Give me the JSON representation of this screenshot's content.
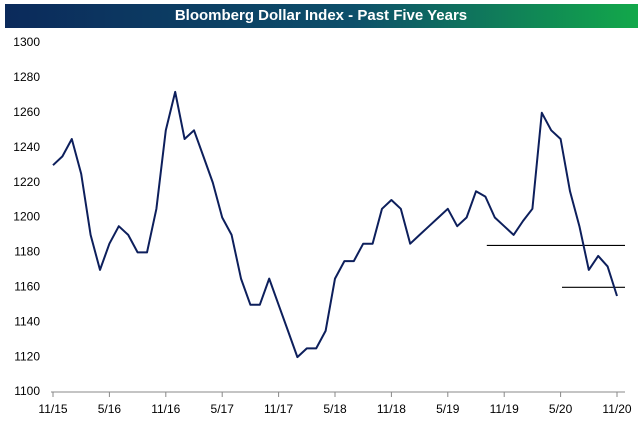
{
  "chart_data": {
    "type": "line",
    "title": "Bloomberg Dollar Index - Past Five Years",
    "x": [
      "11/15",
      "12/15",
      "1/16",
      "2/16",
      "3/16",
      "4/16",
      "5/16",
      "6/16",
      "7/16",
      "8/16",
      "9/16",
      "10/16",
      "11/16",
      "12/16",
      "1/17",
      "2/17",
      "3/17",
      "4/17",
      "5/17",
      "6/17",
      "7/17",
      "8/17",
      "9/17",
      "10/17",
      "11/17",
      "12/17",
      "1/18",
      "2/18",
      "3/18",
      "4/18",
      "5/18",
      "6/18",
      "7/18",
      "8/18",
      "9/18",
      "10/18",
      "11/18",
      "12/18",
      "1/19",
      "2/19",
      "3/19",
      "4/19",
      "5/19",
      "6/19",
      "7/19",
      "8/19",
      "9/19",
      "10/19",
      "11/19",
      "12/19",
      "1/20",
      "2/20",
      "3/20",
      "4/20",
      "5/20",
      "6/20",
      "7/20",
      "8/20",
      "9/20",
      "10/20",
      "11/20"
    ],
    "series": [
      {
        "name": "Bloomberg Dollar Index",
        "color": "#0d1f5c",
        "values": [
          1230,
          1235,
          1245,
          1225,
          1190,
          1170,
          1185,
          1195,
          1190,
          1180,
          1180,
          1205,
          1250,
          1272,
          1245,
          1250,
          1235,
          1220,
          1200,
          1190,
          1165,
          1150,
          1150,
          1165,
          1150,
          1135,
          1120,
          1125,
          1125,
          1135,
          1165,
          1175,
          1175,
          1185,
          1185,
          1205,
          1210,
          1205,
          1185,
          1190,
          1195,
          1200,
          1205,
          1195,
          1200,
          1215,
          1212,
          1200,
          1195,
          1190,
          1198,
          1205,
          1260,
          1250,
          1245,
          1215,
          1195,
          1170,
          1178,
          1172,
          1155
        ]
      }
    ],
    "xticks": [
      "11/15",
      "5/16",
      "11/16",
      "5/17",
      "11/17",
      "5/18",
      "11/18",
      "5/19",
      "11/19",
      "5/20",
      "11/20"
    ],
    "ylim": [
      1100,
      1300
    ],
    "yticks": [
      1100,
      1120,
      1140,
      1160,
      1180,
      1200,
      1220,
      1240,
      1260,
      1280,
      1300
    ],
    "grid": false,
    "reference_lines": [
      {
        "value": 1184,
        "from": "10/19",
        "to": "11/20",
        "color": "#000000"
      },
      {
        "value": 1160,
        "from": "6/20",
        "to": "11/20",
        "color": "#000000"
      }
    ]
  }
}
